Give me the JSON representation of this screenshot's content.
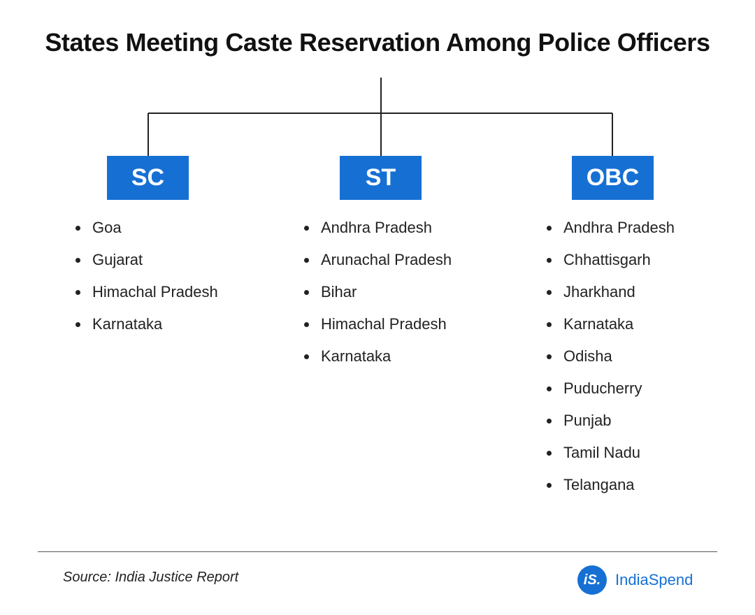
{
  "title": "States Meeting Caste Reservation Among Police Officers",
  "colors": {
    "box": "#1670d4",
    "logo": "#1670d4",
    "connector": "#222222"
  },
  "categories": [
    {
      "label": "SC",
      "states": [
        "Goa",
        "Gujarat",
        "Himachal Pradesh",
        "Karnataka"
      ]
    },
    {
      "label": "ST",
      "states": [
        "Andhra Pradesh",
        "Arunachal Pradesh",
        "Bihar",
        "Himachal Pradesh",
        "Karnataka"
      ]
    },
    {
      "label": "OBC",
      "states": [
        "Andhra Pradesh",
        "Chhattisgarh",
        "Jharkhand",
        "Karnataka",
        "Odisha",
        "Puducherry",
        "Punjab",
        "Tamil Nadu",
        "Telangana"
      ]
    }
  ],
  "footer": {
    "source": "Source: India Justice Report",
    "logo_mark": "iS.",
    "logo_text": "IndiaSpend"
  }
}
